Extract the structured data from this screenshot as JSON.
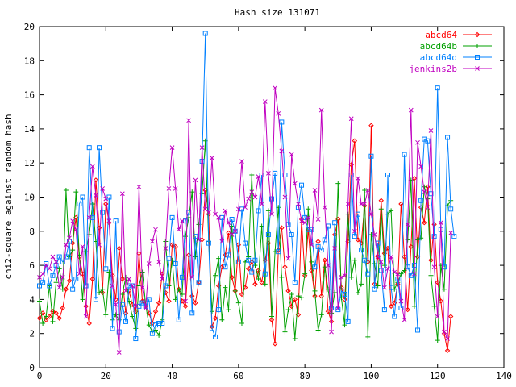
{
  "chart_data": {
    "type": "line",
    "title": "Hash size 131071",
    "xlabel": "",
    "ylabel": "chi2-square against random hash",
    "xlim": [
      0,
      140
    ],
    "ylim": [
      0,
      20
    ],
    "xticks": [
      0,
      20,
      40,
      60,
      80,
      100,
      120,
      140
    ],
    "yticks": [
      0,
      2,
      4,
      6,
      8,
      10,
      12,
      14,
      16,
      18,
      20
    ],
    "legend": "top-right",
    "grid": false,
    "series": [
      {
        "name": "abcd64",
        "color": "#ff0000",
        "marker": "diamond",
        "values": [
          2.9,
          3.2,
          2.8,
          3.0,
          3.3,
          3.2,
          2.9,
          3.5,
          4.6,
          5.1,
          7.3,
          8.8,
          6.5,
          5.5,
          3.6,
          2.6,
          5.2,
          11.0,
          8.2,
          4.4,
          9.6,
          8.5,
          5.4,
          4.0,
          7.0,
          5.2,
          3.2,
          4.5,
          3.7,
          3.3,
          6.7,
          3.9,
          3.6,
          3.2,
          2.6,
          3.3,
          3.8,
          5.5,
          4.4,
          3.9,
          7.2,
          7.1,
          4.6,
          3.9,
          3.6,
          6.6,
          4.2,
          3.8,
          5.0,
          7.5,
          10.4,
          9.0,
          2.4,
          2.9,
          4.8,
          5.9,
          6.6,
          7.9,
          5.3,
          4.5,
          7.2,
          4.3,
          4.7,
          5.8,
          6.2,
          4.9,
          5.7,
          5.0,
          6.3,
          7.3,
          2.8,
          1.4,
          6.9,
          8.2,
          5.9,
          4.5,
          3.6,
          4.0,
          3.1,
          8.7,
          5.4,
          8.1,
          5.7,
          4.2,
          7.4,
          4.2,
          6.3,
          3.3,
          2.7,
          7.8,
          8.7,
          4.7,
          4.0,
          7.4,
          11.9,
          13.3,
          7.5,
          7.3,
          9.5,
          6.2,
          14.2,
          4.9,
          6.5,
          9.8,
          6.7,
          7.0,
          3.6,
          3.8,
          4.9,
          9.6,
          6.5,
          3.4,
          7.1,
          11.1,
          6.5,
          9.4,
          8.5,
          10.6,
          6.3,
          8.4,
          5.0,
          3.9,
          2.0,
          1.0,
          3.0
        ]
      },
      {
        "name": "abcd64b",
        "color": "#00a000",
        "marker": "plus",
        "values": [
          3.9,
          2.6,
          3.0,
          4.8,
          2.7,
          5.0,
          5.8,
          4.6,
          10.4,
          6.5,
          6.9,
          10.3,
          6.6,
          4.0,
          6.8,
          7.8,
          9.6,
          7.4,
          4.4,
          4.6,
          3.1,
          5.6,
          2.8,
          3.1,
          2.8,
          4.3,
          5.3,
          3.9,
          3.0,
          2.3,
          4.8,
          5.6,
          3.7,
          2.5,
          2.1,
          2.2,
          1.9,
          2.8,
          7.4,
          4.8,
          6.3,
          4.0,
          4.6,
          4.3,
          7.7,
          8.8,
          10.3,
          6.5,
          8.4,
          10.2,
          13.3,
          7.4,
          3.3,
          5.4,
          6.4,
          2.8,
          4.7,
          3.4,
          8.3,
          4.5,
          3.8,
          2.6,
          6.2,
          6.5,
          11.3,
          6.0,
          5.2,
          8.3,
          4.9,
          9.2,
          3.0,
          6.8,
          9.4,
          5.3,
          2.1,
          3.4,
          4.3,
          1.7,
          4.2,
          4.1,
          5.5,
          9.3,
          6.2,
          4.5,
          2.2,
          3.1,
          5.9,
          4.6,
          3.2,
          4.4,
          10.8,
          4.1,
          2.5,
          9.0,
          5.3,
          6.3,
          4.4,
          4.9,
          10.4,
          1.8,
          7.8,
          6.1,
          4.8,
          9.3,
          6.0,
          9.0,
          9.2,
          4.6,
          5.0,
          5.5,
          5.7,
          7.5,
          11.0,
          3.6,
          7.5,
          7.6,
          10.6,
          9.9,
          5.4,
          3.6,
          1.6,
          6.0,
          4.6,
          9.5,
          9.8
        ]
      },
      {
        "name": "abcd64d",
        "color": "#0080ff",
        "marker": "square",
        "values": [
          4.8,
          5.0,
          6.1,
          4.8,
          5.4,
          6.0,
          6.5,
          6.2,
          6.5,
          7.4,
          4.6,
          5.2,
          9.6,
          10.0,
          4.8,
          12.9,
          8.8,
          4.0,
          12.9,
          9.1,
          5.8,
          10.0,
          2.3,
          8.6,
          2.1,
          3.7,
          2.7,
          4.8,
          4.8,
          1.7,
          3.6,
          3.8,
          3.6,
          4.0,
          2.0,
          2.5,
          2.6,
          2.6,
          4.8,
          6.4,
          8.8,
          6.1,
          2.8,
          5.3,
          8.6,
          9.1,
          3.2,
          7.7,
          5.0,
          12.1,
          19.6,
          7.3,
          2.3,
          1.8,
          3.4,
          8.8,
          5.9,
          6.6,
          8.7,
          8.0,
          6.2,
          9.3,
          7.3,
          6.3,
          5.6,
          6.3,
          9.2,
          11.3,
          5.5,
          7.8,
          9.9,
          11.4,
          6.8,
          14.4,
          11.3,
          8.4,
          7.8,
          5.0,
          9.4,
          10.7,
          8.8,
          8.1,
          8.1,
          5.9,
          7.1,
          6.9,
          7.5,
          8.3,
          3.5,
          8.5,
          3.4,
          4.5,
          4.3,
          2.7,
          11.3,
          7.7,
          9.0,
          6.9,
          6.3,
          5.5,
          12.4,
          4.6,
          7.3,
          5.7,
          3.4,
          11.3,
          4.7,
          3.0,
          5.2,
          3.5,
          12.5,
          5.9,
          5.4,
          6.0,
          2.2,
          9.8,
          13.4,
          13.3,
          10.2,
          7.7,
          16.4,
          8.1,
          5.9,
          13.5,
          9.3,
          7.7
        ]
      },
      {
        "name": "jenkins2b",
        "color": "#c000c0",
        "marker": "x",
        "values": [
          5.3,
          5.5,
          6.0,
          5.8,
          6.5,
          6.2,
          4.7,
          5.3,
          7.2,
          7.6,
          8.6,
          8.1,
          5.5,
          7.1,
          3.0,
          8.8,
          11.8,
          10.1,
          7.2,
          10.5,
          9.9,
          8.6,
          4.8,
          3.7,
          0.9,
          10.2,
          4.5,
          5.2,
          4.8,
          3.6,
          10.6,
          4.7,
          3.5,
          6.1,
          7.4,
          8.1,
          6.2,
          5.2,
          7.0,
          10.5,
          12.9,
          10.5,
          8.1,
          8.6,
          3.9,
          14.5,
          5.3,
          11.0,
          7.5,
          12.9,
          9.3,
          9.1,
          12.3,
          9.0,
          8.8,
          7.4,
          9.2,
          8.5,
          7.8,
          8.0,
          9.3,
          12.1,
          9.4,
          9.9,
          10.3,
          10.0,
          11.2,
          9.6,
          15.6,
          11.4,
          9.0,
          16.4,
          14.9,
          12.7,
          10.0,
          6.4,
          12.5,
          10.8,
          9.6,
          8.6,
          8.5,
          8.8,
          7.2,
          10.4,
          8.7,
          15.1,
          9.4,
          6.0,
          2.1,
          7.0,
          3.5,
          5.3,
          5.4,
          9.6,
          14.6,
          8.0,
          11.1,
          9.6,
          9.6,
          10.4,
          9.0,
          7.8,
          6.5,
          6.2,
          4.7,
          5.8,
          6.5,
          5.6,
          5.5,
          3.9,
          2.8,
          8.4,
          15.1,
          5.5,
          13.2,
          11.8,
          10.3,
          9.4,
          13.9,
          5.9,
          3.0,
          8.5,
          2.1,
          1.7,
          7.9
        ]
      }
    ]
  }
}
